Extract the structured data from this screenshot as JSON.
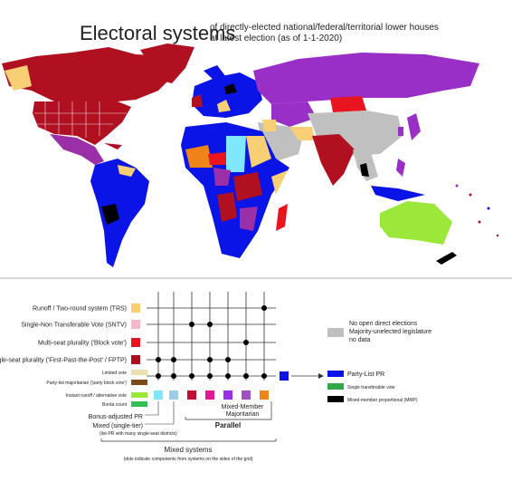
{
  "title": "Electoral systems",
  "subtitle": [
    "of directly-elected national/federal/territorial lower houses",
    "at latest election (as of 1-1-2020)"
  ],
  "legend_rows": [
    {
      "label": "Runoff / Two-round system (TRS)",
      "color": "#f9cf76"
    },
    {
      "label": "Single-Non Transferable Vote (SNTV)",
      "color": "#f7b6c9"
    },
    {
      "label": "Multi-seat plurality ('Block vote')",
      "color": "#e8141e"
    },
    {
      "label": "single-seat plurality ('First-Past-the-Post' / FPTP)",
      "color": "#aa1020"
    }
  ],
  "minor_legend": [
    {
      "label": "Limited vote",
      "color": "#ede0b0"
    },
    {
      "label": "Party-list majoritarian ('party block vote')",
      "color": "#7a4a1a"
    },
    {
      "label": "Instant runoff / alternative vote",
      "color": "#9be83a"
    },
    {
      "label": "Borda count",
      "color": "#2fbf52"
    }
  ],
  "gray_legend": {
    "lines": [
      "No open direct elections",
      "Majority-unelected legislature",
      "no data"
    ],
    "color": "#c0c0c0"
  },
  "pr_legend": [
    {
      "label": "Party-List PR",
      "color": "#0a14e6"
    },
    {
      "label": "Single transferable vote",
      "color": "#2fa84a"
    },
    {
      "label": "Mixed-member proportional (MMP)",
      "color": "#000000"
    }
  ],
  "grid_labels": {
    "bonus": "Bonus-adjusted PR",
    "mixed_single_tier": "Mixed (single-tier)",
    "mixed_single_tier_note": "(list-PR with many single-seat districts)",
    "mmm": [
      "Mixed-Member",
      "Majoritarian"
    ],
    "parallel": "Parallel",
    "mixed_systems": "Mixed systems",
    "mixed_systems_note": "(dots indicate components from systems on the sides of the grid)"
  }
}
